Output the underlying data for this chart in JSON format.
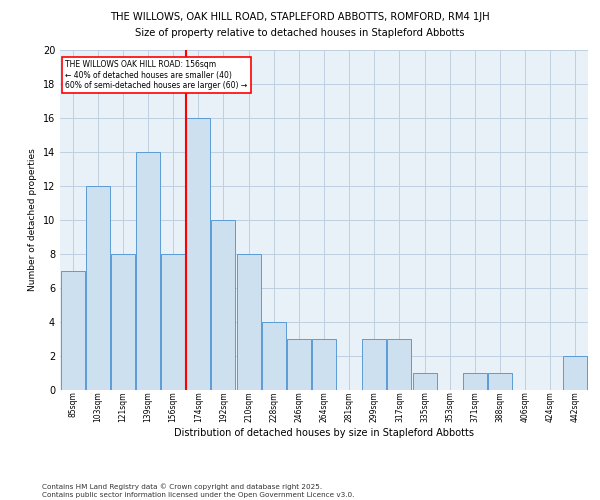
{
  "title1": "THE WILLOWS, OAK HILL ROAD, STAPLEFORD ABBOTTS, ROMFORD, RM4 1JH",
  "title2": "Size of property relative to detached houses in Stapleford Abbotts",
  "xlabel": "Distribution of detached houses by size in Stapleford Abbotts",
  "ylabel": "Number of detached properties",
  "footer": "Contains HM Land Registry data © Crown copyright and database right 2025.\nContains public sector information licensed under the Open Government Licence v3.0.",
  "categories": [
    "85sqm",
    "103sqm",
    "121sqm",
    "139sqm",
    "156sqm",
    "174sqm",
    "192sqm",
    "210sqm",
    "228sqm",
    "246sqm",
    "264sqm",
    "281sqm",
    "299sqm",
    "317sqm",
    "335sqm",
    "353sqm",
    "371sqm",
    "388sqm",
    "406sqm",
    "424sqm",
    "442sqm"
  ],
  "values": [
    7,
    12,
    8,
    14,
    8,
    16,
    10,
    8,
    4,
    3,
    3,
    0,
    3,
    3,
    1,
    0,
    1,
    1,
    0,
    0,
    2
  ],
  "bar_color": "#cce0f0",
  "bar_edge_color": "#5b9bd5",
  "grid_color": "#c0d0e0",
  "background_color": "#e8f0f8",
  "annotation_box_text": "THE WILLOWS OAK HILL ROAD: 156sqm\n← 40% of detached houses are smaller (40)\n60% of semi-detached houses are larger (60) →",
  "redline_index": 4,
  "ylim": [
    0,
    20
  ],
  "yticks": [
    0,
    2,
    4,
    6,
    8,
    10,
    12,
    14,
    16,
    18,
    20
  ]
}
